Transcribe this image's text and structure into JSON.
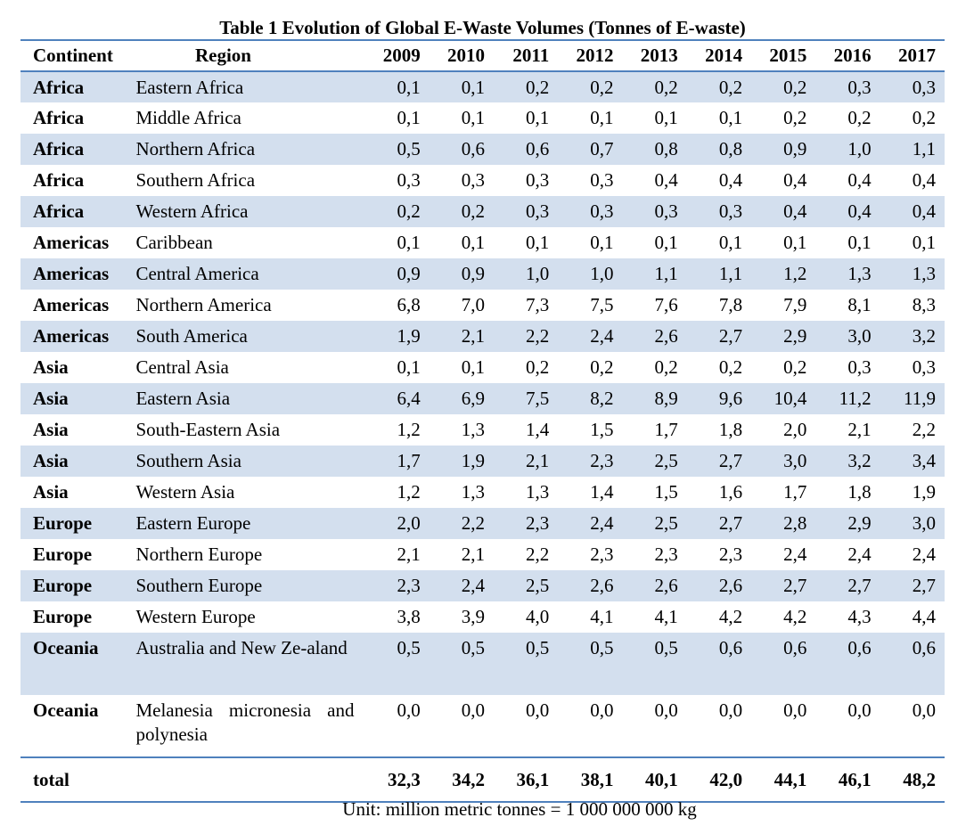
{
  "caption": "Table 1 Evolution of Global E-Waste Volumes (Tonnes of E-waste)",
  "headers": {
    "continent": "Continent",
    "region": "Region",
    "years": [
      "2009",
      "2010",
      "2011",
      "2012",
      "2013",
      "2014",
      "2015",
      "2016",
      "2017"
    ]
  },
  "rows": [
    {
      "continent": "Africa",
      "region": "Eastern Africa",
      "values": [
        "0,1",
        "0,1",
        "0,2",
        "0,2",
        "0,2",
        "0,2",
        "0,2",
        "0,3",
        "0,3"
      ]
    },
    {
      "continent": "Africa",
      "region": "Middle Africa",
      "values": [
        "0,1",
        "0,1",
        "0,1",
        "0,1",
        "0,1",
        "0,1",
        "0,2",
        "0,2",
        "0,2"
      ]
    },
    {
      "continent": "Africa",
      "region": "Northern Africa",
      "values": [
        "0,5",
        "0,6",
        "0,6",
        "0,7",
        "0,8",
        "0,8",
        "0,9",
        "1,0",
        "1,1"
      ]
    },
    {
      "continent": "Africa",
      "region": "Southern Africa",
      "values": [
        "0,3",
        "0,3",
        "0,3",
        "0,3",
        "0,4",
        "0,4",
        "0,4",
        "0,4",
        "0,4"
      ]
    },
    {
      "continent": "Africa",
      "region": "Western Africa",
      "values": [
        "0,2",
        "0,2",
        "0,3",
        "0,3",
        "0,3",
        "0,3",
        "0,4",
        "0,4",
        "0,4"
      ]
    },
    {
      "continent": "Americas",
      "region": "Caribbean",
      "values": [
        "0,1",
        "0,1",
        "0,1",
        "0,1",
        "0,1",
        "0,1",
        "0,1",
        "0,1",
        "0,1"
      ]
    },
    {
      "continent": "Americas",
      "region": "Central America",
      "values": [
        "0,9",
        "0,9",
        "1,0",
        "1,0",
        "1,1",
        "1,1",
        "1,2",
        "1,3",
        "1,3"
      ]
    },
    {
      "continent": "Americas",
      "region": "Northern America",
      "values": [
        "6,8",
        "7,0",
        "7,3",
        "7,5",
        "7,6",
        "7,8",
        "7,9",
        "8,1",
        "8,3"
      ]
    },
    {
      "continent": "Americas",
      "region": "South America",
      "values": [
        "1,9",
        "2,1",
        "2,2",
        "2,4",
        "2,6",
        "2,7",
        "2,9",
        "3,0",
        "3,2"
      ]
    },
    {
      "continent": "Asia",
      "region": "Central Asia",
      "values": [
        "0,1",
        "0,1",
        "0,2",
        "0,2",
        "0,2",
        "0,2",
        "0,2",
        "0,3",
        "0,3"
      ]
    },
    {
      "continent": "Asia",
      "region": "Eastern Asia",
      "values": [
        "6,4",
        "6,9",
        "7,5",
        "8,2",
        "8,9",
        "9,6",
        "10,4",
        "11,2",
        "11,9"
      ]
    },
    {
      "continent": "Asia",
      "region": "South-Eastern Asia",
      "values": [
        "1,2",
        "1,3",
        "1,4",
        "1,5",
        "1,7",
        "1,8",
        "2,0",
        "2,1",
        "2,2"
      ]
    },
    {
      "continent": "Asia",
      "region": "Southern Asia",
      "values": [
        "1,7",
        "1,9",
        "2,1",
        "2,3",
        "2,5",
        "2,7",
        "3,0",
        "3,2",
        "3,4"
      ]
    },
    {
      "continent": "Asia",
      "region": "Western Asia",
      "values": [
        "1,2",
        "1,3",
        "1,3",
        "1,4",
        "1,5",
        "1,6",
        "1,7",
        "1,8",
        "1,9"
      ]
    },
    {
      "continent": "Europe",
      "region": "Eastern Europe",
      "values": [
        "2,0",
        "2,2",
        "2,3",
        "2,4",
        "2,5",
        "2,7",
        "2,8",
        "2,9",
        "3,0"
      ]
    },
    {
      "continent": "Europe",
      "region": "Northern Europe",
      "values": [
        "2,1",
        "2,1",
        "2,2",
        "2,3",
        "2,3",
        "2,3",
        "2,4",
        "2,4",
        "2,4"
      ]
    },
    {
      "continent": "Europe",
      "region": "Southern Europe",
      "values": [
        "2,3",
        "2,4",
        "2,5",
        "2,6",
        "2,6",
        "2,6",
        "2,7",
        "2,7",
        "2,7"
      ]
    },
    {
      "continent": "Europe",
      "region": "Western Europe",
      "values": [
        "3,8",
        "3,9",
        "4,0",
        "4,1",
        "4,1",
        "4,2",
        "4,2",
        "4,3",
        "4,4"
      ]
    },
    {
      "continent": "Oceania",
      "region": "Australia and New Ze-aland",
      "values": [
        "0,5",
        "0,5",
        "0,5",
        "0,5",
        "0,5",
        "0,6",
        "0,6",
        "0,6",
        "0,6"
      ]
    },
    {
      "continent": "Oceania",
      "region": "Melanesia micronesia and polynesia",
      "values": [
        "0,0",
        "0,0",
        "0,0",
        "0,0",
        "0,0",
        "0,0",
        "0,0",
        "0,0",
        "0,0"
      ]
    }
  ],
  "total": {
    "label": "total",
    "values": [
      "32,3",
      "34,2",
      "36,1",
      "38,1",
      "40,1",
      "42,0",
      "44,1",
      "46,1",
      "48,2"
    ]
  },
  "unit_note": "Unit: million metric tonnes = 1 000 000 000 kg",
  "colors": {
    "row_shade": "#d3dfee",
    "rule": "#4f81bd"
  }
}
